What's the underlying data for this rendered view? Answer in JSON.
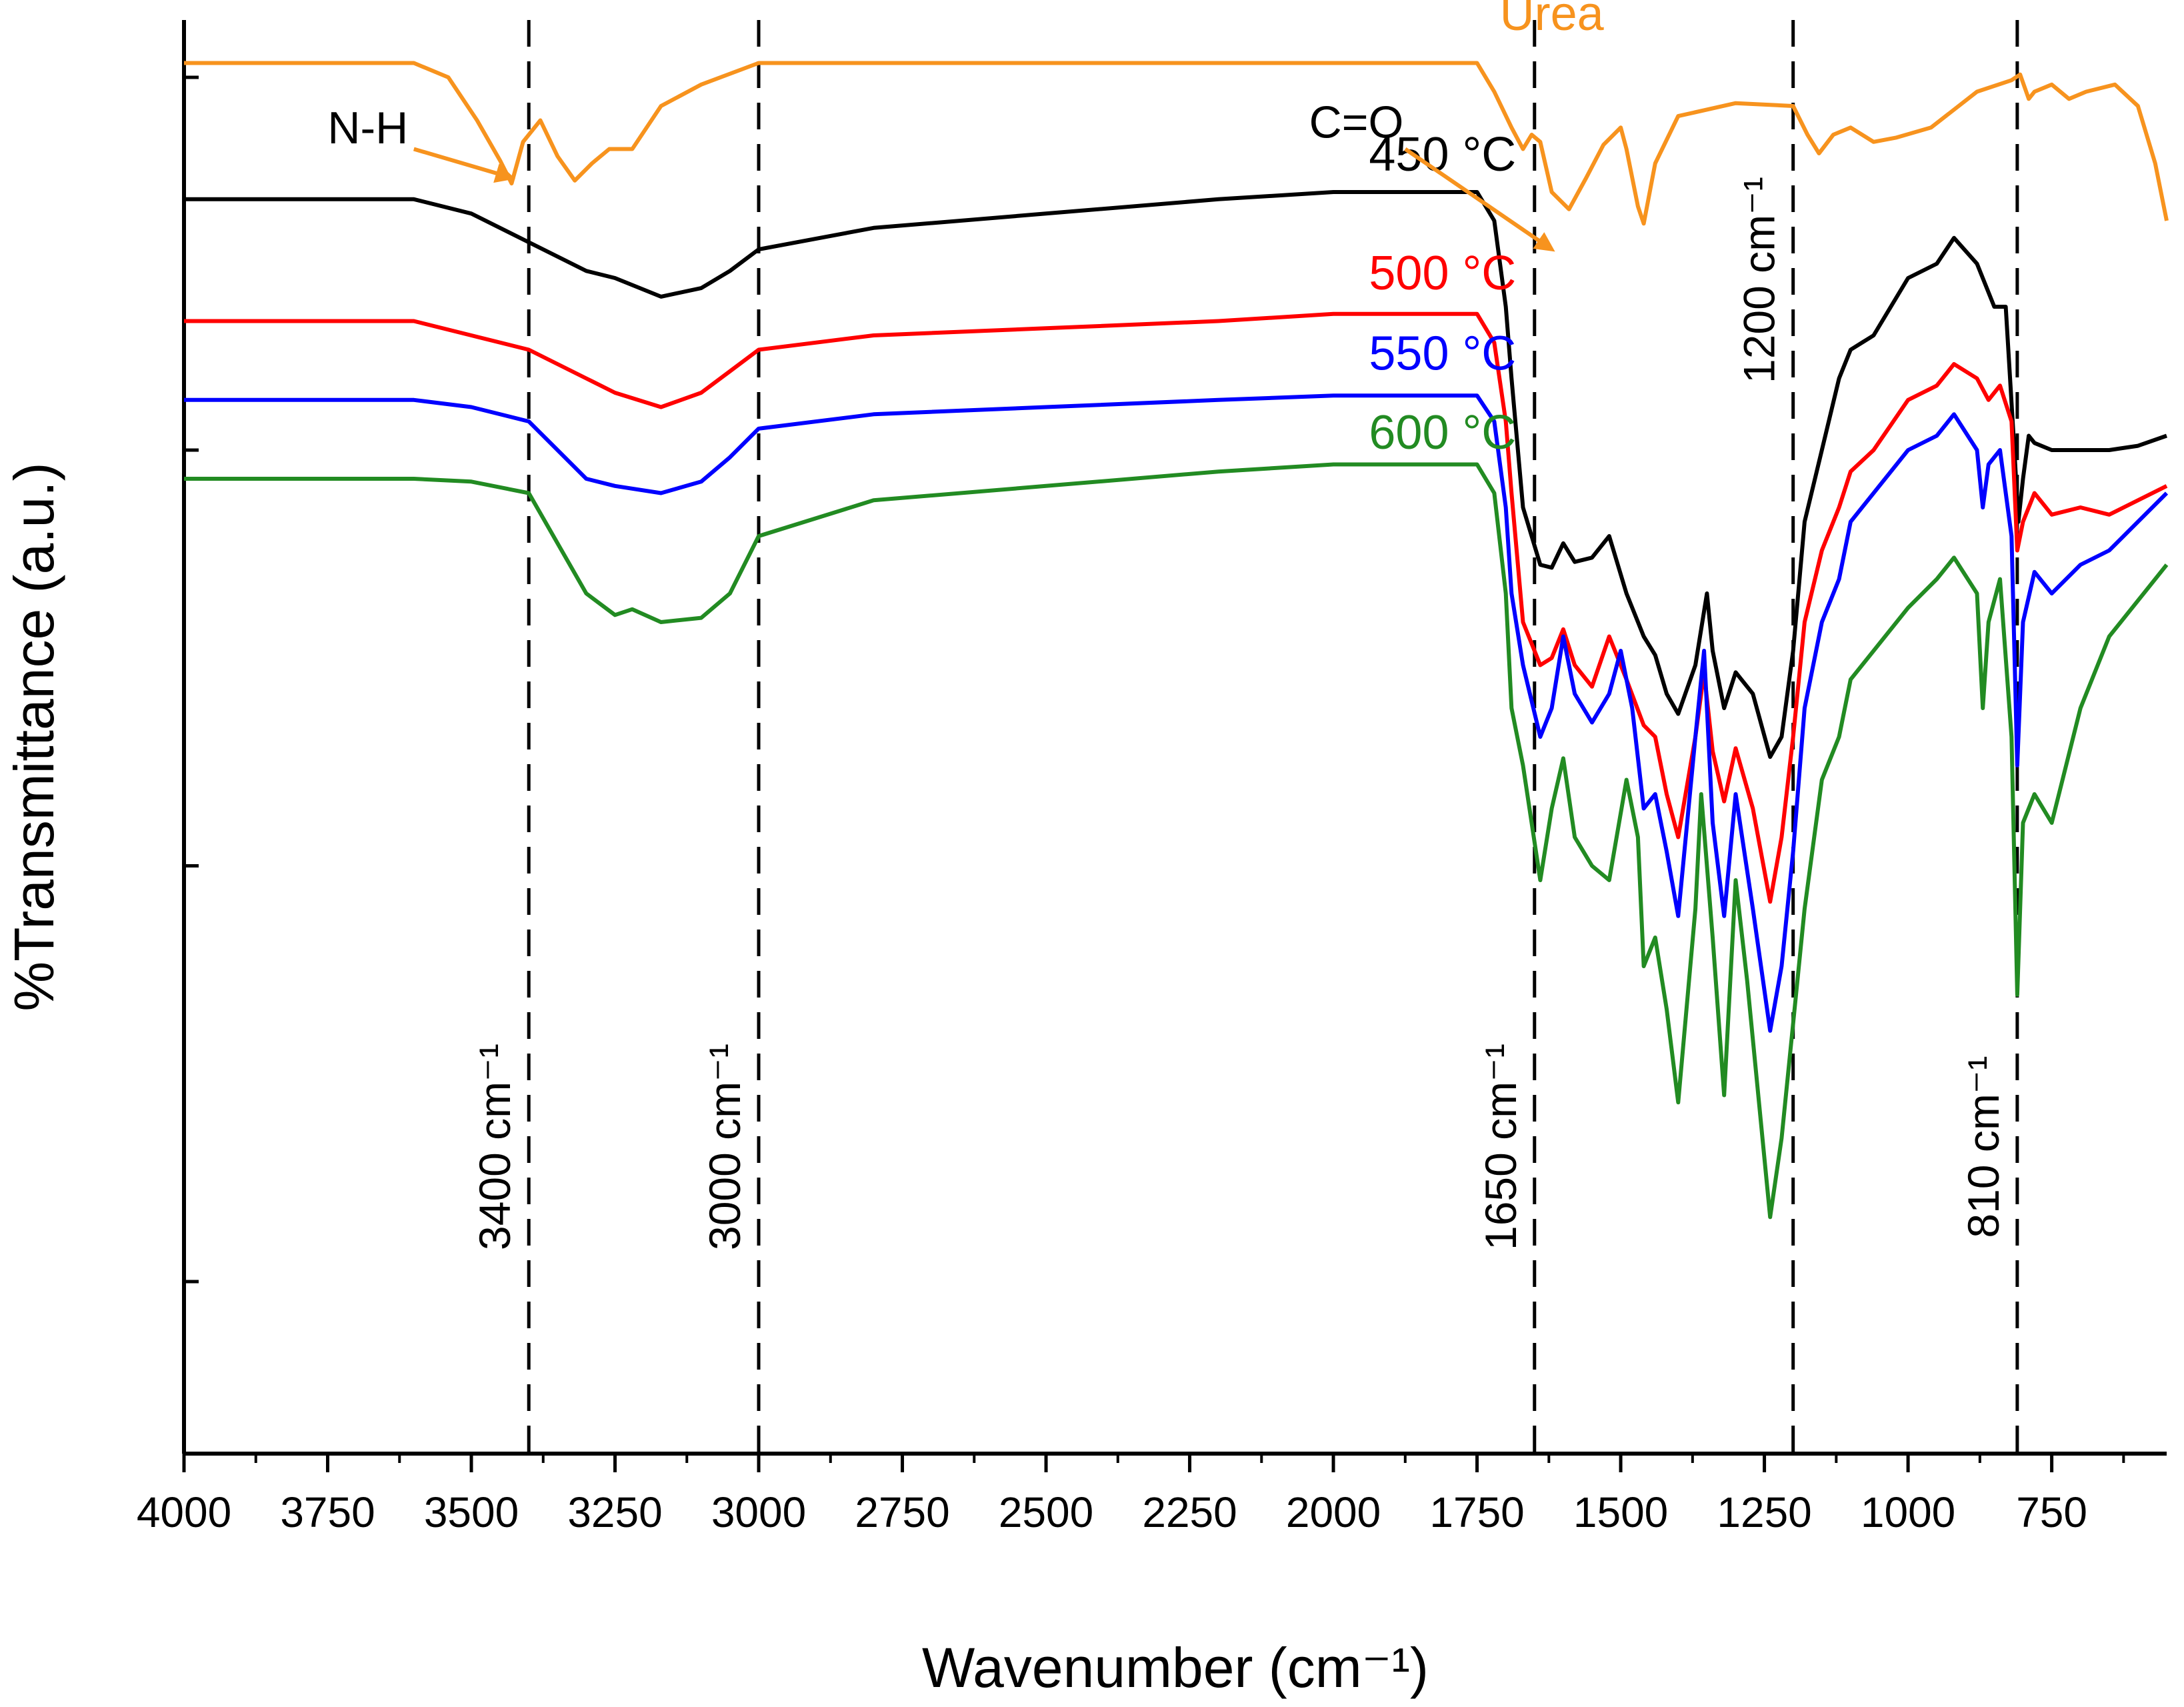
{
  "chart_data": {
    "type": "line",
    "title": "",
    "xlabel": "Wavenumber (cm⁻¹)",
    "ylabel": "%Transmittance (a.u.)",
    "xlim": [
      4000,
      550
    ],
    "ylim": [
      0,
      100
    ],
    "x_ticks": [
      4000,
      3750,
      3500,
      3250,
      3000,
      2750,
      2500,
      2250,
      2000,
      1750,
      1500,
      1250,
      1000,
      750
    ],
    "y_ticks": [
      12,
      41,
      70,
      96
    ],
    "grid": false,
    "reference_lines": [
      {
        "x": 3400,
        "label": "3400 cm⁻¹"
      },
      {
        "x": 3000,
        "label": "3000 cm⁻¹"
      },
      {
        "x": 1650,
        "label": "1650 cm⁻¹"
      },
      {
        "x": 1200,
        "label": "1200 cm⁻¹"
      },
      {
        "x": 810,
        "label": "810 cm⁻¹"
      }
    ],
    "annotations": [
      {
        "text": "N-H",
        "x": 3430,
        "y": 89,
        "color": "#F7931E"
      },
      {
        "text": "C=O",
        "x": 1620,
        "y": 84,
        "color": "#F7931E"
      }
    ],
    "series": [
      {
        "name": "Urea",
        "color": "#F7931E",
        "points": [
          [
            4000,
            97
          ],
          [
            3600,
            97
          ],
          [
            3540,
            96
          ],
          [
            3490,
            93
          ],
          [
            3450,
            90.2
          ],
          [
            3430,
            88.6
          ],
          [
            3410,
            91.5
          ],
          [
            3380,
            93
          ],
          [
            3350,
            90.5
          ],
          [
            3320,
            88.8
          ],
          [
            3290,
            90
          ],
          [
            3260,
            91
          ],
          [
            3220,
            91
          ],
          [
            3170,
            94
          ],
          [
            3100,
            95.5
          ],
          [
            3000,
            97
          ],
          [
            2500,
            97
          ],
          [
            2200,
            97
          ],
          [
            1750,
            97
          ],
          [
            1720,
            95
          ],
          [
            1690,
            92.5
          ],
          [
            1670,
            91
          ],
          [
            1655,
            92
          ],
          [
            1640,
            91.5
          ],
          [
            1620,
            88
          ],
          [
            1590,
            86.8
          ],
          [
            1560,
            89
          ],
          [
            1530,
            91.3
          ],
          [
            1500,
            92.5
          ],
          [
            1490,
            91
          ],
          [
            1470,
            87
          ],
          [
            1460,
            85.8
          ],
          [
            1440,
            90
          ],
          [
            1400,
            93.3
          ],
          [
            1300,
            94.2
          ],
          [
            1200,
            94
          ],
          [
            1175,
            92
          ],
          [
            1155,
            90.7
          ],
          [
            1130,
            92
          ],
          [
            1100,
            92.5
          ],
          [
            1060,
            91.5
          ],
          [
            1020,
            91.8
          ],
          [
            960,
            92.5
          ],
          [
            880,
            95
          ],
          [
            820,
            95.8
          ],
          [
            805,
            96.2
          ],
          [
            790,
            94.5
          ],
          [
            780,
            95
          ],
          [
            750,
            95.5
          ],
          [
            720,
            94.5
          ],
          [
            690,
            95
          ],
          [
            640,
            95.5
          ],
          [
            600,
            94
          ],
          [
            570,
            90
          ],
          [
            550,
            86
          ]
        ]
      },
      {
        "name": "450 °C",
        "color": "#000000",
        "points": [
          [
            4000,
            87.5
          ],
          [
            3600,
            87.5
          ],
          [
            3500,
            86.5
          ],
          [
            3400,
            84.5
          ],
          [
            3300,
            82.5
          ],
          [
            3250,
            82
          ],
          [
            3170,
            80.7
          ],
          [
            3100,
            81.3
          ],
          [
            3050,
            82.5
          ],
          [
            3000,
            84
          ],
          [
            2800,
            85.5
          ],
          [
            2500,
            86.5
          ],
          [
            2200,
            87.5
          ],
          [
            2000,
            88
          ],
          [
            1750,
            88
          ],
          [
            1720,
            86
          ],
          [
            1700,
            80
          ],
          [
            1690,
            75
          ],
          [
            1670,
            66
          ],
          [
            1640,
            62
          ],
          [
            1620,
            61.8
          ],
          [
            1600,
            63.5
          ],
          [
            1580,
            62.2
          ],
          [
            1550,
            62.5
          ],
          [
            1520,
            64
          ],
          [
            1490,
            60
          ],
          [
            1460,
            57
          ],
          [
            1440,
            55.7
          ],
          [
            1420,
            53
          ],
          [
            1400,
            51.6
          ],
          [
            1370,
            55
          ],
          [
            1350,
            60
          ],
          [
            1340,
            56
          ],
          [
            1320,
            52
          ],
          [
            1300,
            54.5
          ],
          [
            1270,
            53
          ],
          [
            1240,
            48.6
          ],
          [
            1220,
            50
          ],
          [
            1200,
            56
          ],
          [
            1180,
            65
          ],
          [
            1150,
            70
          ],
          [
            1120,
            75
          ],
          [
            1100,
            77
          ],
          [
            1060,
            78
          ],
          [
            1000,
            82
          ],
          [
            950,
            83
          ],
          [
            920,
            84.8
          ],
          [
            880,
            83
          ],
          [
            850,
            80
          ],
          [
            830,
            80
          ],
          [
            815,
            70
          ],
          [
            808,
            65
          ],
          [
            800,
            68
          ],
          [
            790,
            71
          ],
          [
            780,
            70.5
          ],
          [
            750,
            70
          ],
          [
            700,
            70
          ],
          [
            650,
            70
          ],
          [
            600,
            70.3
          ],
          [
            550,
            71
          ]
        ]
      },
      {
        "name": "500 °C",
        "color": "#FF0000",
        "points": [
          [
            4000,
            79
          ],
          [
            3600,
            79
          ],
          [
            3500,
            78
          ],
          [
            3400,
            77
          ],
          [
            3300,
            75
          ],
          [
            3250,
            74
          ],
          [
            3170,
            73
          ],
          [
            3100,
            74
          ],
          [
            3050,
            75.5
          ],
          [
            3000,
            77
          ],
          [
            2800,
            78
          ],
          [
            2500,
            78.5
          ],
          [
            2200,
            79
          ],
          [
            2000,
            79.5
          ],
          [
            1750,
            79.5
          ],
          [
            1720,
            77.5
          ],
          [
            1700,
            72
          ],
          [
            1690,
            67
          ],
          [
            1670,
            58
          ],
          [
            1640,
            55
          ],
          [
            1620,
            55.5
          ],
          [
            1600,
            57.5
          ],
          [
            1580,
            55
          ],
          [
            1550,
            53.5
          ],
          [
            1520,
            57
          ],
          [
            1490,
            54
          ],
          [
            1460,
            50.8
          ],
          [
            1440,
            50
          ],
          [
            1420,
            46
          ],
          [
            1400,
            43
          ],
          [
            1370,
            50
          ],
          [
            1355,
            54.5
          ],
          [
            1340,
            49
          ],
          [
            1320,
            45.5
          ],
          [
            1300,
            49.2
          ],
          [
            1270,
            45
          ],
          [
            1240,
            38.5
          ],
          [
            1220,
            43
          ],
          [
            1200,
            50
          ],
          [
            1180,
            58
          ],
          [
            1150,
            63
          ],
          [
            1120,
            66
          ],
          [
            1100,
            68.5
          ],
          [
            1060,
            70
          ],
          [
            1000,
            73.5
          ],
          [
            950,
            74.5
          ],
          [
            920,
            76
          ],
          [
            880,
            75
          ],
          [
            860,
            73.5
          ],
          [
            840,
            74.5
          ],
          [
            820,
            72
          ],
          [
            810,
            63
          ],
          [
            800,
            65
          ],
          [
            780,
            67
          ],
          [
            750,
            65.5
          ],
          [
            700,
            66
          ],
          [
            650,
            65.5
          ],
          [
            600,
            66.5
          ],
          [
            550,
            67.5
          ]
        ]
      },
      {
        "name": "550 °C",
        "color": "#0000FF",
        "points": [
          [
            4000,
            73.5
          ],
          [
            3600,
            73.5
          ],
          [
            3500,
            73
          ],
          [
            3400,
            72
          ],
          [
            3300,
            68
          ],
          [
            3250,
            67.5
          ],
          [
            3170,
            67
          ],
          [
            3100,
            67.8
          ],
          [
            3050,
            69.5
          ],
          [
            3000,
            71.5
          ],
          [
            2800,
            72.5
          ],
          [
            2500,
            73
          ],
          [
            2200,
            73.5
          ],
          [
            2000,
            73.8
          ],
          [
            1750,
            73.8
          ],
          [
            1720,
            72
          ],
          [
            1700,
            66
          ],
          [
            1690,
            60
          ],
          [
            1670,
            55
          ],
          [
            1640,
            50
          ],
          [
            1620,
            52
          ],
          [
            1600,
            57
          ],
          [
            1580,
            53
          ],
          [
            1550,
            51
          ],
          [
            1520,
            53
          ],
          [
            1500,
            56
          ],
          [
            1480,
            52
          ],
          [
            1460,
            45
          ],
          [
            1440,
            46
          ],
          [
            1420,
            42
          ],
          [
            1400,
            37.5
          ],
          [
            1370,
            50
          ],
          [
            1355,
            56
          ],
          [
            1340,
            44
          ],
          [
            1320,
            37.5
          ],
          [
            1300,
            46
          ],
          [
            1270,
            38
          ],
          [
            1240,
            29.5
          ],
          [
            1220,
            34
          ],
          [
            1200,
            42
          ],
          [
            1180,
            52
          ],
          [
            1150,
            58
          ],
          [
            1120,
            61
          ],
          [
            1100,
            65
          ],
          [
            1060,
            67
          ],
          [
            1000,
            70
          ],
          [
            950,
            71
          ],
          [
            920,
            72.5
          ],
          [
            880,
            70
          ],
          [
            870,
            66
          ],
          [
            860,
            69
          ],
          [
            840,
            70
          ],
          [
            820,
            64
          ],
          [
            810,
            48
          ],
          [
            800,
            58
          ],
          [
            780,
            61.5
          ],
          [
            750,
            60
          ],
          [
            700,
            62
          ],
          [
            650,
            63
          ],
          [
            600,
            65
          ],
          [
            550,
            67
          ]
        ]
      },
      {
        "name": "600 °C",
        "color": "#228B22",
        "points": [
          [
            4000,
            68
          ],
          [
            3600,
            68
          ],
          [
            3500,
            67.8
          ],
          [
            3400,
            67
          ],
          [
            3300,
            60
          ],
          [
            3250,
            58.5
          ],
          [
            3220,
            58.9
          ],
          [
            3170,
            58
          ],
          [
            3100,
            58.3
          ],
          [
            3050,
            60
          ],
          [
            3000,
            64
          ],
          [
            2800,
            66.5
          ],
          [
            2500,
            67.5
          ],
          [
            2200,
            68.5
          ],
          [
            2000,
            69
          ],
          [
            1750,
            69
          ],
          [
            1720,
            67
          ],
          [
            1700,
            60
          ],
          [
            1690,
            52
          ],
          [
            1670,
            48
          ],
          [
            1640,
            40
          ],
          [
            1620,
            45
          ],
          [
            1600,
            48.5
          ],
          [
            1580,
            43
          ],
          [
            1550,
            41
          ],
          [
            1520,
            40
          ],
          [
            1490,
            47
          ],
          [
            1470,
            43
          ],
          [
            1460,
            34
          ],
          [
            1440,
            36
          ],
          [
            1420,
            31
          ],
          [
            1400,
            24.5
          ],
          [
            1370,
            38
          ],
          [
            1360,
            46
          ],
          [
            1340,
            36
          ],
          [
            1320,
            25
          ],
          [
            1300,
            40
          ],
          [
            1280,
            33
          ],
          [
            1240,
            16.5
          ],
          [
            1220,
            22
          ],
          [
            1200,
            30
          ],
          [
            1180,
            38
          ],
          [
            1150,
            47
          ],
          [
            1120,
            50
          ],
          [
            1100,
            54
          ],
          [
            1060,
            56
          ],
          [
            1000,
            59
          ],
          [
            950,
            61
          ],
          [
            920,
            62.5
          ],
          [
            880,
            60
          ],
          [
            870,
            52
          ],
          [
            860,
            58
          ],
          [
            840,
            61
          ],
          [
            820,
            50
          ],
          [
            810,
            32
          ],
          [
            800,
            44
          ],
          [
            780,
            46
          ],
          [
            750,
            44
          ],
          [
            700,
            52
          ],
          [
            650,
            57
          ],
          [
            600,
            59.5
          ],
          [
            550,
            62
          ]
        ]
      }
    ]
  }
}
